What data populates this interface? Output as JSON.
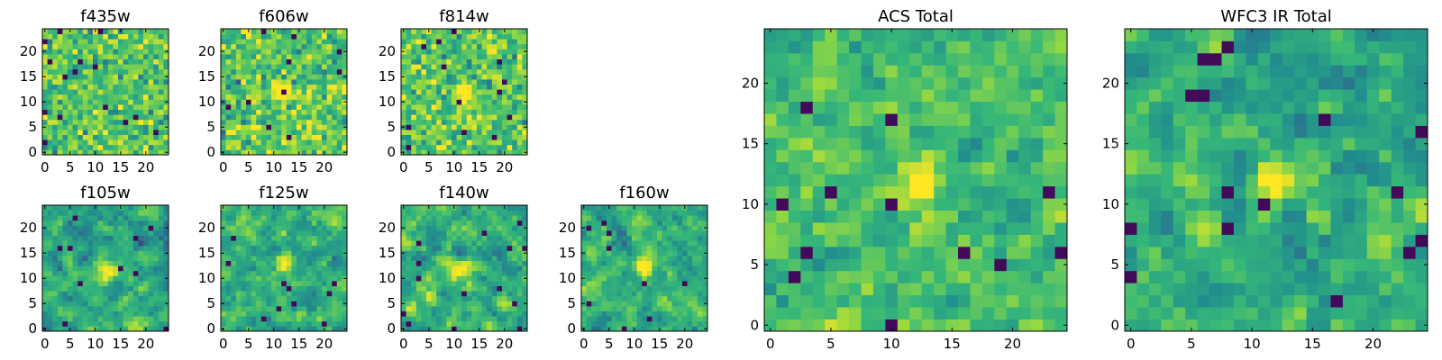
{
  "chart_data": [
    {
      "type": "heatmap",
      "title": "f435w",
      "variant": "noisy",
      "blob": null,
      "xticks": [
        0,
        5,
        10,
        15,
        20
      ],
      "yticks": [
        0,
        5,
        10,
        15,
        20
      ],
      "xlim": [
        0,
        25
      ],
      "ylim": [
        0,
        25
      ],
      "grid": false
    },
    {
      "type": "heatmap",
      "title": "f606w",
      "variant": "noisy",
      "blob": [
        12,
        12
      ],
      "xticks": [
        0,
        5,
        10,
        15,
        20
      ],
      "yticks": [
        0,
        5,
        10,
        15,
        20
      ],
      "xlim": [
        0,
        25
      ],
      "ylim": [
        0,
        25
      ],
      "grid": false
    },
    {
      "type": "heatmap",
      "title": "f814w",
      "variant": "noisy",
      "blob": [
        12,
        12
      ],
      "xticks": [
        0,
        5,
        10,
        15,
        20
      ],
      "yticks": [
        0,
        5,
        10,
        15,
        20
      ],
      "xlim": [
        0,
        25
      ],
      "ylim": [
        0,
        25
      ],
      "grid": false
    },
    {
      "type": "heatmap",
      "title": "f105w",
      "variant": "smooth",
      "blob": [
        12,
        12
      ],
      "xticks": [
        0,
        5,
        10,
        15,
        20
      ],
      "yticks": [
        0,
        5,
        10,
        15,
        20
      ],
      "xlim": [
        0,
        25
      ],
      "ylim": [
        0,
        25
      ],
      "grid": false
    },
    {
      "type": "heatmap",
      "title": "f125w",
      "variant": "smooth",
      "blob": [
        12,
        13
      ],
      "xticks": [
        0,
        5,
        10,
        15,
        20
      ],
      "yticks": [
        0,
        5,
        10,
        15,
        20
      ],
      "xlim": [
        0,
        25
      ],
      "ylim": [
        0,
        25
      ],
      "grid": false
    },
    {
      "type": "heatmap",
      "title": "f140w",
      "variant": "smooth",
      "blob": [
        11,
        12
      ],
      "xticks": [
        0,
        5,
        10,
        15,
        20
      ],
      "yticks": [
        0,
        5,
        10,
        15,
        20
      ],
      "xlim": [
        0,
        25
      ],
      "ylim": [
        0,
        25
      ],
      "grid": false
    },
    {
      "type": "heatmap",
      "title": "f160w",
      "variant": "smooth",
      "blob": [
        12,
        12
      ],
      "xticks": [
        0,
        5,
        10,
        15,
        20
      ],
      "yticks": [
        0,
        5,
        10,
        15,
        20
      ],
      "xlim": [
        0,
        25
      ],
      "ylim": [
        0,
        25
      ],
      "grid": false
    },
    {
      "type": "heatmap",
      "title": "ACS Total",
      "variant": "medium",
      "blob": [
        12,
        12
      ],
      "xticks": [
        0,
        5,
        10,
        15,
        20
      ],
      "yticks": [
        0,
        5,
        10,
        15,
        20
      ],
      "xlim": [
        0,
        25
      ],
      "ylim": [
        0,
        25
      ],
      "grid": false
    },
    {
      "type": "heatmap",
      "title": "WFC3 IR Total",
      "variant": "smooth",
      "blob": [
        12,
        12
      ],
      "xticks": [
        0,
        5,
        10,
        15,
        20
      ],
      "yticks": [
        0,
        5,
        10,
        15,
        20
      ],
      "xlim": [
        0,
        25
      ],
      "ylim": [
        0,
        25
      ],
      "grid": false
    }
  ],
  "colormap": [
    "#440154",
    "#31688e",
    "#21908d",
    "#35b779",
    "#90d743",
    "#fde725"
  ]
}
